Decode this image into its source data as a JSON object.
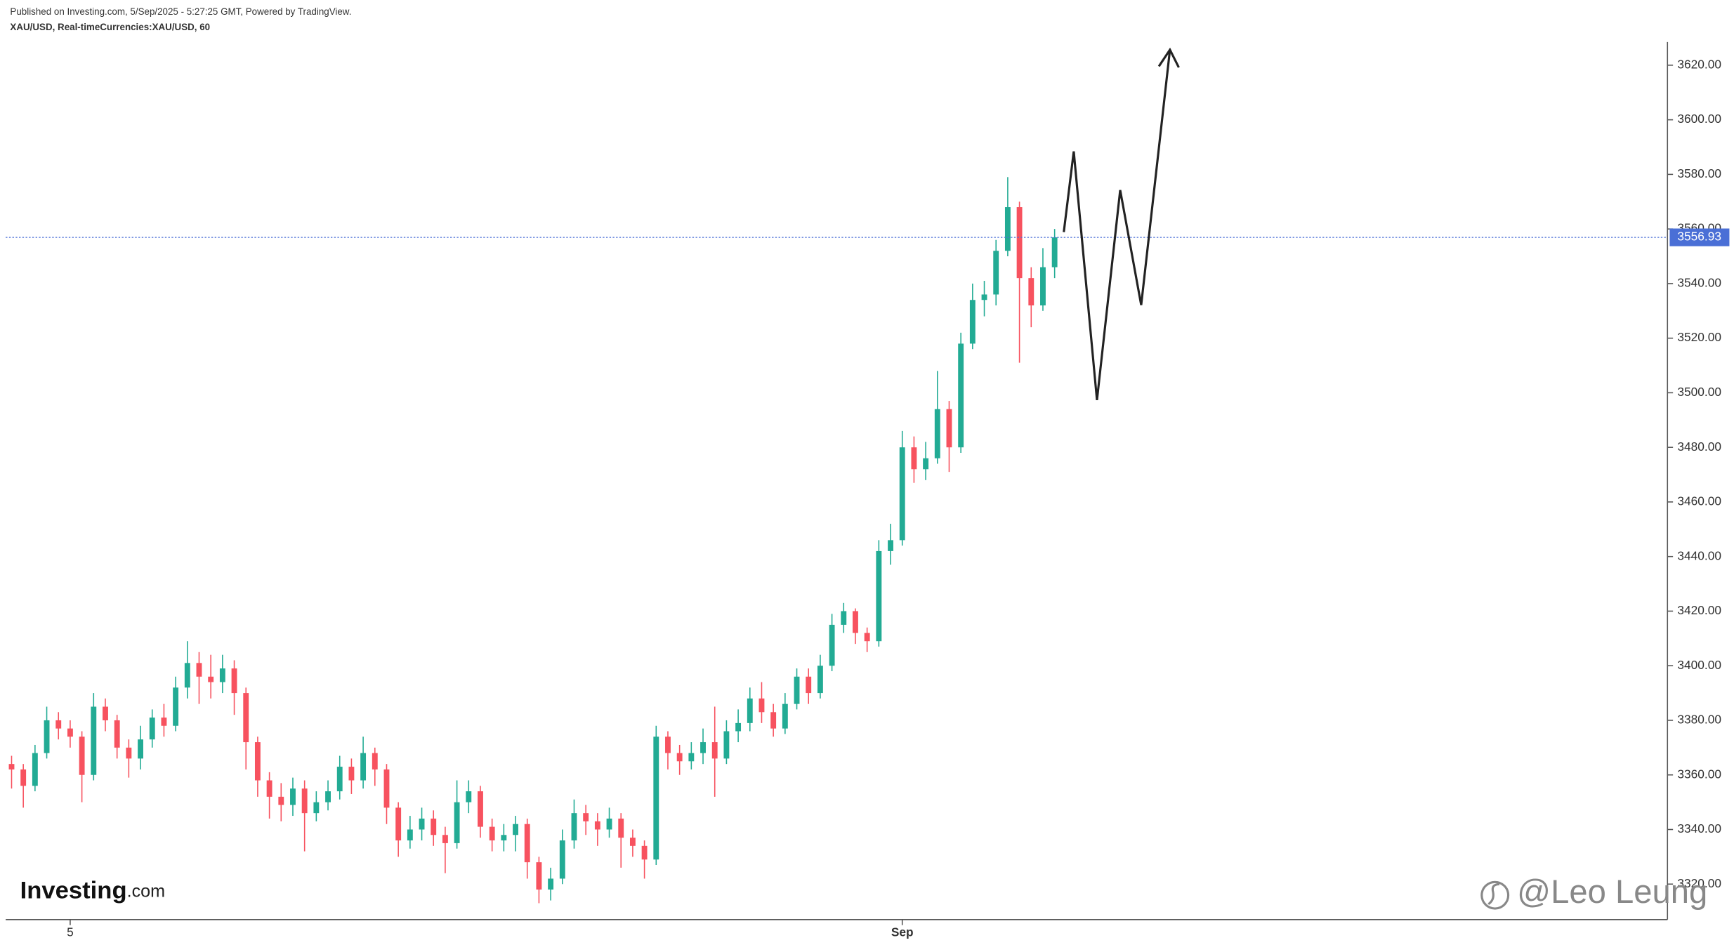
{
  "chart_data": {
    "type": "candlestick",
    "header": "Published on Investing.com, 5/Sep/2025 - 5:27:25 GMT, Powered by TradingView.",
    "title": "XAU/USD, Real-timeCurrencies:XAU/USD, 60",
    "logo": {
      "name": "Investing",
      "suffix": ".com"
    },
    "watermark": "@Leo Leung",
    "categories": [
      null,
      null,
      null,
      null,
      null,
      "5",
      null,
      null,
      null,
      null,
      null,
      null,
      null,
      null,
      null,
      null,
      null,
      null,
      null,
      null,
      null,
      null,
      null,
      null,
      null,
      null,
      null,
      null,
      null,
      null,
      null,
      null,
      null,
      null,
      null,
      null,
      null,
      null,
      null,
      null,
      null,
      null,
      null,
      null,
      null,
      null,
      null,
      null,
      null,
      null,
      null,
      null,
      null,
      null,
      null,
      null,
      null,
      null,
      null,
      null,
      null,
      null,
      null,
      null,
      null,
      null,
      null,
      null,
      null,
      null,
      null,
      null,
      null,
      null,
      null,
      null,
      "Sep",
      null,
      null,
      null,
      null,
      null,
      null,
      null,
      null,
      null,
      null,
      null,
      null,
      null
    ],
    "open": [
      3364,
      3362,
      3356,
      3368,
      3380,
      3377,
      3374,
      3360,
      3385,
      3380,
      3370,
      3366,
      3373,
      3381,
      3378,
      3392,
      3401,
      3396,
      3394,
      3399,
      3390,
      3372,
      3358,
      3352,
      3349,
      3355,
      3346,
      3350,
      3354,
      3363,
      3358,
      3368,
      3362,
      3348,
      3336,
      3340,
      3344,
      3338,
      3335,
      3350,
      3354,
      3341,
      3336,
      3338,
      3342,
      3328,
      3318,
      3322,
      3336,
      3346,
      3343,
      3340,
      3344,
      3337,
      3334,
      3329,
      3374,
      3368,
      3365,
      3368,
      3372,
      3366,
      3376,
      3379,
      3388,
      3383,
      3377,
      3386,
      3396,
      3390,
      3400,
      3415,
      3420,
      3412,
      3409,
      3442,
      3446,
      3480,
      3472,
      3476,
      3494,
      3480,
      3518,
      3534,
      3536,
      3552,
      3568,
      3542,
      3532,
      3546
    ],
    "high": [
      3367,
      3364,
      3371,
      3385,
      3383,
      3380,
      3376,
      3390,
      3388,
      3382,
      3373,
      3378,
      3384,
      3386,
      3396,
      3409,
      3405,
      3404,
      3404,
      3402,
      3392,
      3374,
      3361,
      3357,
      3359,
      3358,
      3354,
      3358,
      3367,
      3366,
      3374,
      3370,
      3364,
      3350,
      3345,
      3348,
      3347,
      3341,
      3358,
      3358,
      3356,
      3344,
      3342,
      3345,
      3344,
      3330,
      3326,
      3340,
      3351,
      3349,
      3346,
      3348,
      3346,
      3340,
      3336,
      3378,
      3376,
      3371,
      3372,
      3377,
      3385,
      3380,
      3384,
      3392,
      3394,
      3386,
      3390,
      3399,
      3399,
      3404,
      3419,
      3423,
      3421,
      3414,
      3446,
      3452,
      3486,
      3484,
      3482,
      3508,
      3497,
      3522,
      3540,
      3541,
      3556,
      3579,
      3570,
      3546,
      3553,
      3560
    ],
    "low": [
      3355,
      3348,
      3354,
      3366,
      3373,
      3370,
      3350,
      3358,
      3376,
      3366,
      3359,
      3362,
      3370,
      3374,
      3376,
      3388,
      3386,
      3388,
      3390,
      3382,
      3362,
      3352,
      3344,
      3343,
      3345,
      3332,
      3343,
      3347,
      3351,
      3353,
      3355,
      3356,
      3342,
      3330,
      3333,
      3336,
      3334,
      3324,
      3333,
      3346,
      3337,
      3332,
      3332,
      3332,
      3322,
      3313,
      3314,
      3320,
      3333,
      3338,
      3334,
      3337,
      3326,
      3330,
      3322,
      3327,
      3362,
      3360,
      3362,
      3364,
      3352,
      3364,
      3372,
      3376,
      3379,
      3374,
      3375,
      3384,
      3386,
      3388,
      3398,
      3412,
      3408,
      3405,
      3407,
      3437,
      3444,
      3467,
      3468,
      3474,
      3471,
      3478,
      3516,
      3528,
      3532,
      3550,
      3511,
      3524,
      3530,
      3542
    ],
    "close": [
      3362,
      3356,
      3368,
      3380,
      3377,
      3374,
      3360,
      3385,
      3380,
      3370,
      3366,
      3373,
      3381,
      3378,
      3392,
      3401,
      3396,
      3394,
      3399,
      3390,
      3372,
      3358,
      3352,
      3349,
      3355,
      3346,
      3350,
      3354,
      3363,
      3358,
      3368,
      3362,
      3348,
      3336,
      3340,
      3344,
      3338,
      3335,
      3350,
      3354,
      3341,
      3336,
      3338,
      3342,
      3328,
      3318,
      3322,
      3336,
      3346,
      3343,
      3340,
      3344,
      3337,
      3334,
      3329,
      3374,
      3368,
      3365,
      3368,
      3372,
      3366,
      3376,
      3379,
      3388,
      3383,
      3377,
      3386,
      3396,
      3390,
      3400,
      3415,
      3420,
      3412,
      3409,
      3442,
      3446,
      3480,
      3472,
      3476,
      3494,
      3480,
      3518,
      3534,
      3536,
      3552,
      3568,
      3542,
      3532,
      3546,
      3556.93
    ],
    "up_color": "#22ab94",
    "down_color": "#f7525f",
    "current_price": 3556.93,
    "price_line_color": "#4a6fd6",
    "ylim": [
      3307,
      3628.5
    ],
    "yticks": [
      {
        "value": 3320,
        "label": "3320.00"
      },
      {
        "value": 3340,
        "label": "3340.00"
      },
      {
        "value": 3360,
        "label": "3360.00"
      },
      {
        "value": 3380,
        "label": "3380.00"
      },
      {
        "value": 3400,
        "label": "3400.00"
      },
      {
        "value": 3420,
        "label": "3420.00"
      },
      {
        "value": 3440,
        "label": "3440.00"
      },
      {
        "value": 3460,
        "label": "3460.00"
      },
      {
        "value": 3480,
        "label": "3480.00"
      },
      {
        "value": 3500,
        "label": "3500.00"
      },
      {
        "value": 3520,
        "label": "3520.00"
      },
      {
        "value": 3540,
        "label": "3540.00"
      },
      {
        "value": 3560,
        "label": "3560.00"
      },
      {
        "value": 3580,
        "label": "3580.00"
      },
      {
        "value": 3600,
        "label": "3600.00"
      },
      {
        "value": 3620,
        "label": "3620.00"
      }
    ]
  }
}
